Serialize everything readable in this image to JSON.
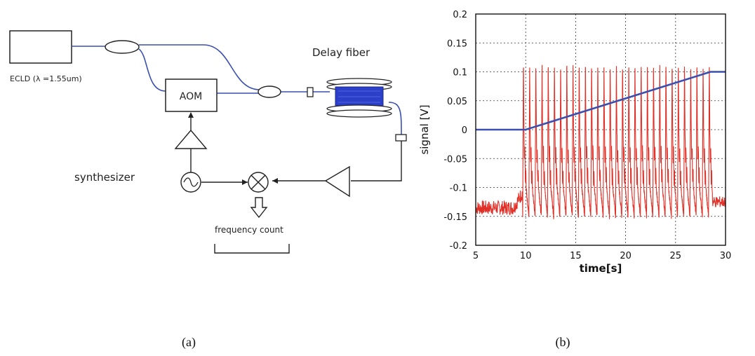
{
  "diagram": {
    "labels": {
      "laser": "ECLD (λ =1.55um)",
      "aom": "AOM",
      "delay_fiber": "Delay fiber",
      "synthesizer": "synthesizer",
      "frequency_count": "frequency count"
    },
    "colors": {
      "fiber": "#3a4fb0",
      "spool": "#2b3fc9",
      "line": "#222222"
    }
  },
  "captions": {
    "a": "(a)",
    "b": "(b)"
  },
  "chart_data": {
    "type": "line",
    "xlabel": "time[s]",
    "ylabel": "signal [V]",
    "xlim": [
      5,
      30
    ],
    "ylim": [
      -0.2,
      0.2
    ],
    "x_ticks": [
      "5",
      "10",
      "15",
      "20",
      "25",
      "30"
    ],
    "y_ticks": [
      "0.2",
      "0.15",
      "0.1",
      "0.05",
      "0",
      "-0.05",
      "-0.1",
      "-0.15",
      "-0.2"
    ],
    "grid": true,
    "series": [
      {
        "color": "#e03027",
        "baseline": -0.135,
        "oscillation_start": 9.7,
        "oscillation_end": 28.7,
        "peak": 0.12,
        "trough": -0.15,
        "period": 0.62,
        "x": [
          5,
          6,
          7,
          8,
          9,
          9.7,
          28.7,
          29,
          29.5,
          30
        ],
        "y": [
          -0.135,
          -0.14,
          -0.138,
          -0.135,
          -0.125,
          -0.11,
          -0.11,
          -0.115,
          -0.125,
          -0.12
        ]
      },
      {
        "color": "#3a4fb0",
        "x": [
          5,
          10,
          28.5,
          30
        ],
        "y": [
          0,
          0,
          0.1,
          0.1
        ]
      }
    ]
  }
}
